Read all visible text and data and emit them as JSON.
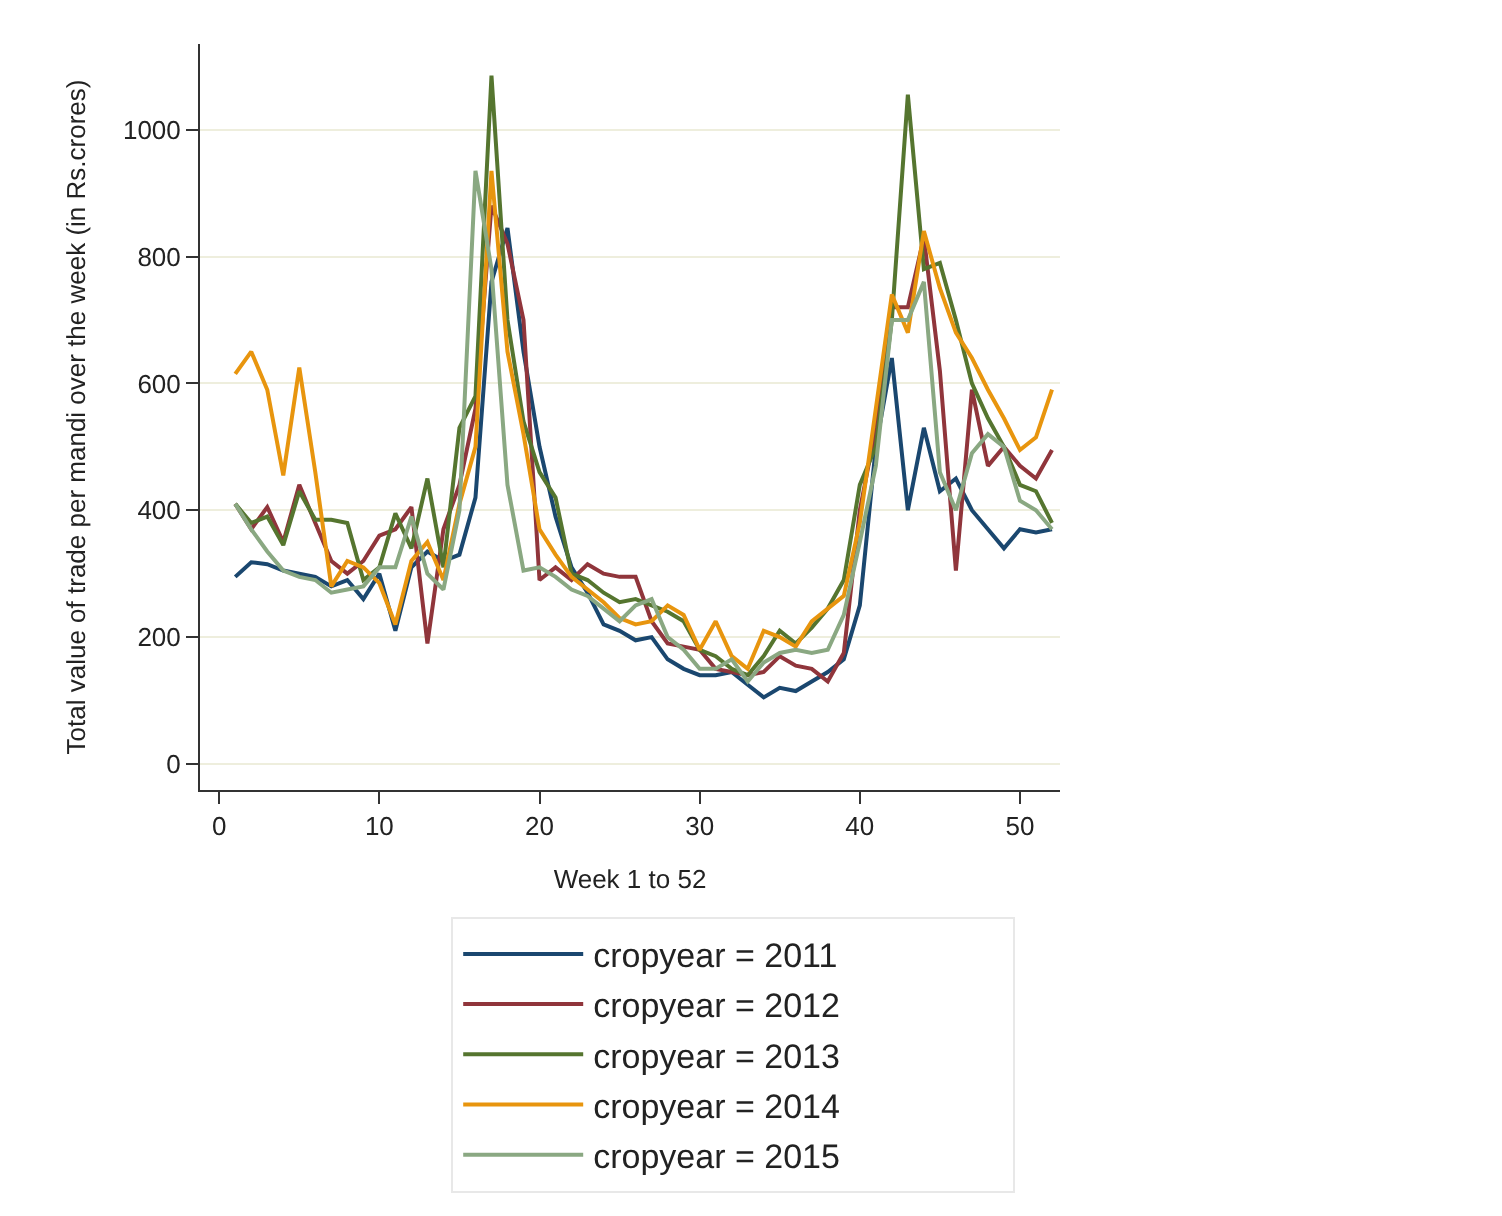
{
  "chart_data": {
    "type": "line",
    "xlabel": "Week 1 to 52",
    "ylabel": "Total value of trade per mandi over the week (in Rs.crores)",
    "x": [
      1,
      2,
      3,
      4,
      5,
      6,
      7,
      8,
      9,
      10,
      11,
      12,
      13,
      14,
      15,
      16,
      17,
      18,
      19,
      20,
      21,
      22,
      23,
      24,
      25,
      26,
      27,
      28,
      29,
      30,
      31,
      32,
      33,
      34,
      35,
      36,
      37,
      38,
      39,
      40,
      41,
      42,
      43,
      44,
      45,
      46,
      47,
      48,
      49,
      50,
      51,
      52
    ],
    "xlim": [
      -1.2,
      52.5
    ],
    "xticks": [
      0,
      10,
      20,
      30,
      40,
      50
    ],
    "ylim": [
      -41,
      1135
    ],
    "yticks": [
      0,
      200,
      400,
      600,
      800,
      1000
    ],
    "grid": "y",
    "legend": "bottom",
    "marker": "none",
    "line_style": "solid",
    "series": [
      {
        "name": "cropyear = 2011",
        "color": "#1a476f",
        "values": [
          295,
          318,
          315,
          305,
          300,
          295,
          280,
          290,
          260,
          300,
          210,
          310,
          335,
          320,
          330,
          420,
          760,
          845,
          650,
          500,
          390,
          310,
          270,
          220,
          210,
          195,
          200,
          165,
          150,
          140,
          140,
          145,
          125,
          105,
          120,
          115,
          130,
          145,
          165,
          250,
          500,
          640,
          400,
          530,
          430,
          450,
          400,
          370,
          340,
          370,
          365,
          370
        ]
      },
      {
        "name": "cropyear = 2012",
        "color": "#90353b",
        "values": [
          410,
          370,
          405,
          350,
          440,
          380,
          320,
          300,
          320,
          360,
          370,
          405,
          190,
          370,
          440,
          560,
          880,
          820,
          700,
          290,
          310,
          290,
          315,
          300,
          295,
          295,
          225,
          190,
          185,
          180,
          150,
          145,
          140,
          145,
          170,
          155,
          150,
          130,
          175,
          400,
          530,
          720,
          720,
          830,
          620,
          305,
          590,
          470,
          500,
          470,
          450,
          495
        ]
      },
      {
        "name": "cropyear = 2013",
        "color": "#55752f",
        "values": [
          410,
          380,
          390,
          345,
          430,
          385,
          385,
          380,
          290,
          310,
          395,
          340,
          450,
          310,
          530,
          580,
          1085,
          700,
          540,
          460,
          420,
          300,
          290,
          270,
          255,
          260,
          250,
          240,
          225,
          180,
          170,
          150,
          140,
          170,
          210,
          190,
          215,
          245,
          290,
          440,
          500,
          700,
          1055,
          780,
          790,
          700,
          600,
          545,
          500,
          440,
          430,
          380
        ]
      },
      {
        "name": "cropyear = 2014",
        "color": "#e8950e",
        "values": [
          615,
          650,
          590,
          455,
          625,
          460,
          280,
          320,
          310,
          285,
          220,
          320,
          350,
          290,
          410,
          500,
          935,
          650,
          520,
          370,
          330,
          295,
          275,
          255,
          230,
          220,
          225,
          250,
          235,
          180,
          225,
          170,
          150,
          210,
          200,
          185,
          225,
          245,
          265,
          380,
          560,
          740,
          680,
          840,
          750,
          680,
          640,
          590,
          545,
          495,
          515,
          590
        ]
      },
      {
        "name": "cropyear = 2015",
        "color": "#8aa882",
        "values": [
          410,
          370,
          335,
          305,
          295,
          290,
          270,
          275,
          280,
          310,
          310,
          390,
          300,
          275,
          400,
          935,
          780,
          440,
          305,
          310,
          295,
          275,
          265,
          245,
          225,
          250,
          260,
          200,
          180,
          150,
          150,
          165,
          130,
          160,
          175,
          180,
          175,
          180,
          235,
          350,
          470,
          700,
          700,
          760,
          460,
          400,
          490,
          520,
          500,
          415,
          400,
          370
        ]
      }
    ]
  }
}
